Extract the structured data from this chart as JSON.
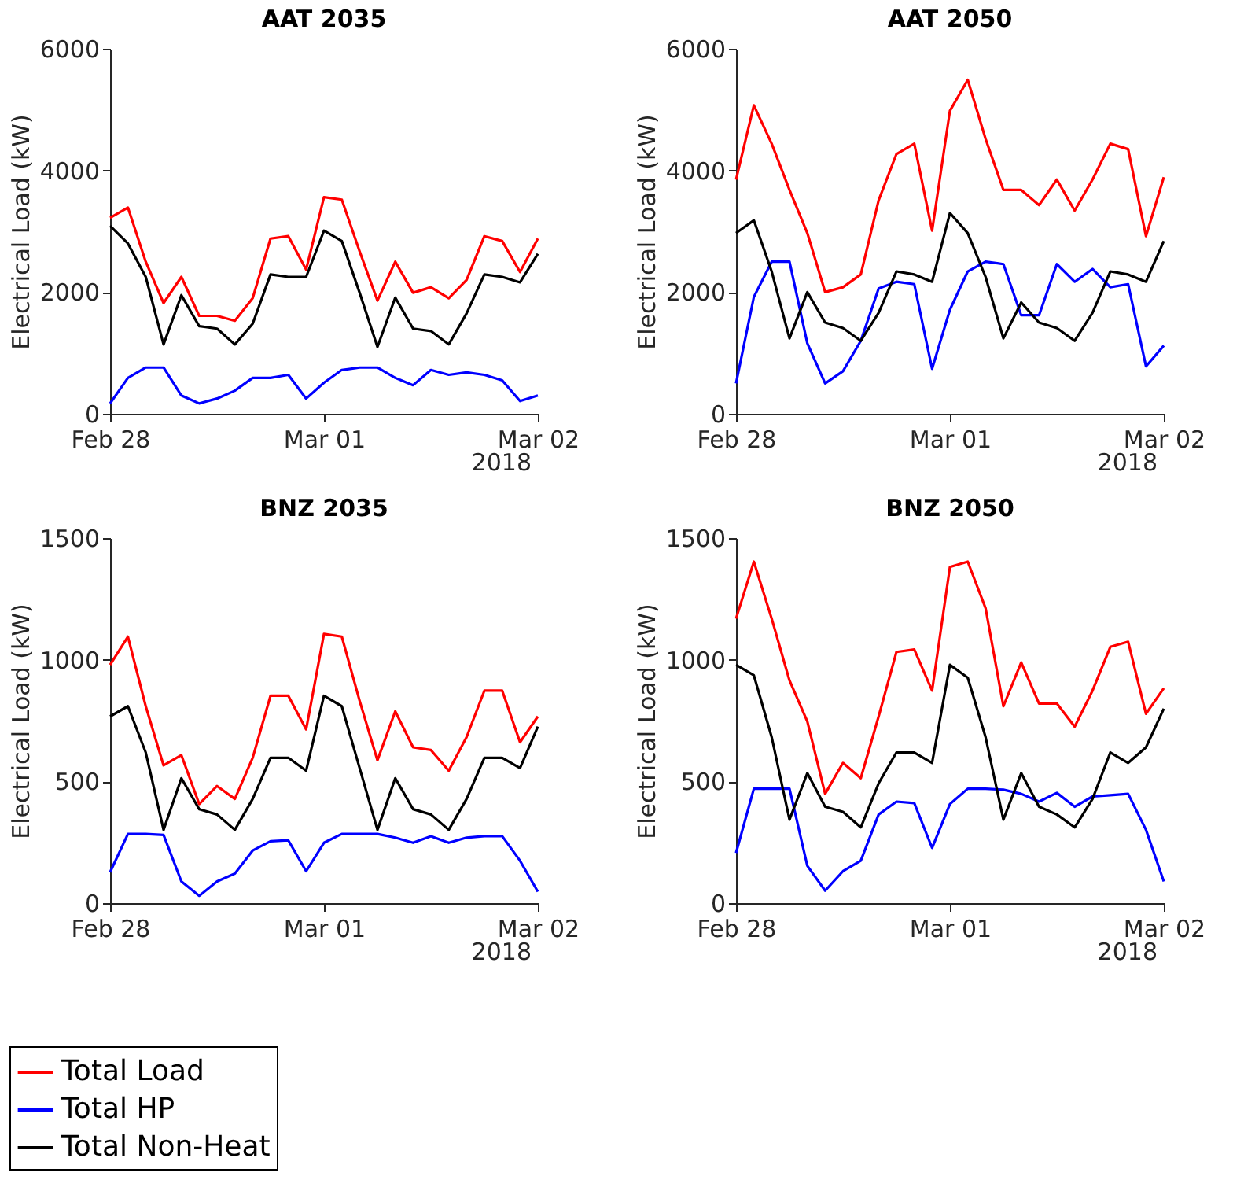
{
  "chart_data": [
    {
      "type": "line",
      "title": "AAT 2035",
      "ylabel": "Electrical Load (kW)",
      "annotations": [
        "2018"
      ],
      "grid": false,
      "legend": "bottom left",
      "x": [
        "2018-02-28T00:00",
        "2018-02-28T02:00",
        "2018-02-28T04:00",
        "2018-02-28T06:00",
        "2018-02-28T08:00",
        "2018-02-28T10:00",
        "2018-02-28T12:00",
        "2018-02-28T14:00",
        "2018-02-28T16:00",
        "2018-02-28T18:00",
        "2018-02-28T20:00",
        "2018-02-28T22:00",
        "2018-03-01T00:00",
        "2018-03-01T02:00",
        "2018-03-01T04:00",
        "2018-03-01T06:00",
        "2018-03-01T08:00",
        "2018-03-01T10:00",
        "2018-03-01T12:00",
        "2018-03-01T14:00",
        "2018-03-01T16:00",
        "2018-03-01T18:00",
        "2018-03-01T20:00",
        "2018-03-01T22:00",
        "2018-03-02T00:00"
      ],
      "xlim": [
        "2018-02-28",
        "2018-03-02"
      ],
      "xticks": [
        {
          "value": "2018-02-28",
          "label": "Feb 28"
        },
        {
          "value": "2018-03-01",
          "label": "Mar 01"
        },
        {
          "value": "2018-03-02",
          "label": "Mar 02"
        }
      ],
      "ylim": [
        0,
        6000
      ],
      "yticks": [
        0,
        2000,
        4000,
        6000
      ],
      "series": [
        {
          "name": "Total Load",
          "color": "#ff0000",
          "values": [
            3220,
            3390,
            2500,
            1820,
            2250,
            1610,
            1610,
            1530,
            1900,
            2880,
            2920,
            2370,
            3560,
            3520,
            2670,
            1860,
            2500,
            1990,
            2080,
            1900,
            2200,
            2920,
            2840,
            2330,
            2880
          ]
        },
        {
          "name": "Total HP",
          "color": "#0000ff",
          "values": [
            170,
            590,
            760,
            760,
            300,
            170,
            250,
            380,
            590,
            590,
            640,
            250,
            510,
            720,
            760,
            760,
            590,
            470,
            720,
            640,
            680,
            640,
            550,
            210,
            300
          ]
        },
        {
          "name": "Total Non-Heat",
          "color": "#000000",
          "values": [
            3090,
            2800,
            2250,
            1140,
            1950,
            1440,
            1400,
            1140,
            1480,
            2290,
            2250,
            2250,
            3010,
            2840,
            1990,
            1100,
            1910,
            1400,
            1360,
            1140,
            1650,
            2290,
            2250,
            2160,
            2630
          ]
        }
      ]
    },
    {
      "type": "line",
      "title": "AAT 2050",
      "ylabel": "Electrical Load (kW)",
      "annotations": [
        "2018"
      ],
      "grid": false,
      "x": [
        "2018-02-28T00:00",
        "2018-02-28T02:00",
        "2018-02-28T04:00",
        "2018-02-28T06:00",
        "2018-02-28T08:00",
        "2018-02-28T10:00",
        "2018-02-28T12:00",
        "2018-02-28T14:00",
        "2018-02-28T16:00",
        "2018-02-28T18:00",
        "2018-02-28T20:00",
        "2018-02-28T22:00",
        "2018-03-01T00:00",
        "2018-03-01T02:00",
        "2018-03-01T04:00",
        "2018-03-01T06:00",
        "2018-03-01T08:00",
        "2018-03-01T10:00",
        "2018-03-01T12:00",
        "2018-03-01T14:00",
        "2018-03-01T16:00",
        "2018-03-01T18:00",
        "2018-03-01T20:00",
        "2018-03-01T22:00",
        "2018-03-02T00:00"
      ],
      "xlim": [
        "2018-02-28",
        "2018-03-02"
      ],
      "xticks": [
        {
          "value": "2018-02-28",
          "label": "Feb 28"
        },
        {
          "value": "2018-03-01",
          "label": "Mar 01"
        },
        {
          "value": "2018-03-02",
          "label": "Mar 02"
        }
      ],
      "ylim": [
        0,
        6000
      ],
      "yticks": [
        0,
        2000,
        4000,
        6000
      ],
      "series": [
        {
          "name": "Total Load",
          "color": "#ff0000",
          "values": [
            3850,
            5070,
            4440,
            3680,
            2970,
            2000,
            2080,
            2290,
            3510,
            4270,
            4440,
            3010,
            4980,
            5490,
            4520,
            3680,
            3680,
            3430,
            3850,
            3340,
            3850,
            4440,
            4350,
            2920,
            3890
          ]
        },
        {
          "name": "Total HP",
          "color": "#0000ff",
          "values": [
            500,
            1920,
            2500,
            2500,
            1160,
            500,
            700,
            1200,
            2060,
            2170,
            2130,
            740,
            1710,
            2340,
            2500,
            2460,
            1620,
            1620,
            2460,
            2170,
            2380,
            2080,
            2130,
            780,
            1120
          ]
        },
        {
          "name": "Total Non-Heat",
          "color": "#000000",
          "values": [
            2970,
            3180,
            2340,
            1240,
            2000,
            1500,
            1410,
            1200,
            1660,
            2340,
            2290,
            2170,
            3300,
            2970,
            2250,
            1240,
            1830,
            1500,
            1410,
            1200,
            1660,
            2340,
            2290,
            2170,
            2840
          ]
        }
      ]
    },
    {
      "type": "line",
      "title": "BNZ 2035",
      "ylabel": "Electrical Load (kW)",
      "annotations": [
        "2018"
      ],
      "grid": false,
      "x": [
        "2018-02-28T00:00",
        "2018-02-28T02:00",
        "2018-02-28T04:00",
        "2018-02-28T06:00",
        "2018-02-28T08:00",
        "2018-02-28T10:00",
        "2018-02-28T12:00",
        "2018-02-28T14:00",
        "2018-02-28T16:00",
        "2018-02-28T18:00",
        "2018-02-28T20:00",
        "2018-02-28T22:00",
        "2018-03-01T00:00",
        "2018-03-01T02:00",
        "2018-03-01T04:00",
        "2018-03-01T06:00",
        "2018-03-01T08:00",
        "2018-03-01T10:00",
        "2018-03-01T12:00",
        "2018-03-01T14:00",
        "2018-03-01T16:00",
        "2018-03-01T18:00",
        "2018-03-01T20:00",
        "2018-03-01T22:00",
        "2018-03-02T00:00"
      ],
      "xlim": [
        "2018-02-28",
        "2018-03-02"
      ],
      "xticks": [
        {
          "value": "2018-02-28",
          "label": "Feb 28"
        },
        {
          "value": "2018-03-01",
          "label": "Mar 01"
        },
        {
          "value": "2018-03-02",
          "label": "Mar 02"
        }
      ],
      "ylim": [
        0,
        1500
      ],
      "yticks": [
        0,
        500,
        1000,
        1500
      ],
      "series": [
        {
          "name": "Total Load",
          "color": "#ff0000",
          "values": [
            979,
            1095,
            809,
            566,
            608,
            407,
            481,
            428,
            597,
            852,
            852,
            714,
            1106,
            1095,
            831,
            587,
            788,
            640,
            629,
            544,
            682,
            873,
            873,
            661,
            767
          ]
        },
        {
          "name": "Total HP",
          "color": "#0000ff",
          "values": [
            127,
            284,
            284,
            280,
            89,
            30,
            89,
            121,
            216,
            254,
            258,
            131,
            248,
            284,
            284,
            284,
            269,
            248,
            275,
            248,
            269,
            275,
            275,
            174,
            47
          ]
        },
        {
          "name": "Total Non-Heat",
          "color": "#000000",
          "values": [
            767,
            809,
            619,
            301,
            513,
            386,
            364,
            301,
            428,
            597,
            597,
            544,
            852,
            809,
            555,
            301,
            513,
            386,
            364,
            301,
            428,
            597,
            597,
            555,
            725
          ]
        }
      ]
    },
    {
      "type": "line",
      "title": "BNZ 2050",
      "ylabel": "Electrical Load (kW)",
      "annotations": [
        "2018"
      ],
      "grid": false,
      "x": [
        "2018-02-28T00:00",
        "2018-02-28T02:00",
        "2018-02-28T04:00",
        "2018-02-28T06:00",
        "2018-02-28T08:00",
        "2018-02-28T10:00",
        "2018-02-28T12:00",
        "2018-02-28T14:00",
        "2018-02-28T16:00",
        "2018-02-28T18:00",
        "2018-02-28T20:00",
        "2018-02-28T22:00",
        "2018-03-01T00:00",
        "2018-03-01T02:00",
        "2018-03-01T04:00",
        "2018-03-01T06:00",
        "2018-03-01T08:00",
        "2018-03-01T10:00",
        "2018-03-01T12:00",
        "2018-03-01T14:00",
        "2018-03-01T16:00",
        "2018-03-01T18:00",
        "2018-03-01T20:00",
        "2018-03-01T22:00",
        "2018-03-02T00:00"
      ],
      "xlim": [
        "2018-02-28",
        "2018-03-02"
      ],
      "xticks": [
        {
          "value": "2018-02-28",
          "label": "Feb 28"
        },
        {
          "value": "2018-03-01",
          "label": "Mar 01"
        },
        {
          "value": "2018-03-02",
          "label": "Mar 02"
        }
      ],
      "ylim": [
        0,
        1500
      ],
      "yticks": [
        0,
        500,
        1000,
        1500
      ],
      "series": [
        {
          "name": "Total Load",
          "color": "#ff0000",
          "values": [
            1169,
            1403,
            1169,
            915,
            746,
            449,
            576,
            513,
            767,
            1032,
            1042,
            873,
            1381,
            1403,
            1212,
            809,
            989,
            820,
            820,
            725,
            873,
            1053,
            1074,
            778,
            883
          ]
        },
        {
          "name": "Total HP",
          "color": "#0000ff",
          "values": [
            206,
            470,
            470,
            470,
            153,
            51,
            131,
            174,
            364,
            417,
            411,
            227,
            407,
            470,
            470,
            466,
            449,
            417,
            453,
            396,
            438,
            443,
            449,
            301,
            89
          ]
        },
        {
          "name": "Total Non-Heat",
          "color": "#000000",
          "values": [
            979,
            936,
            682,
            343,
            534,
            396,
            375,
            311,
            492,
            619,
            619,
            576,
            979,
            926,
            682,
            343,
            534,
            396,
            364,
            311,
            428,
            619,
            576,
            640,
            799
          ]
        }
      ]
    }
  ]
}
